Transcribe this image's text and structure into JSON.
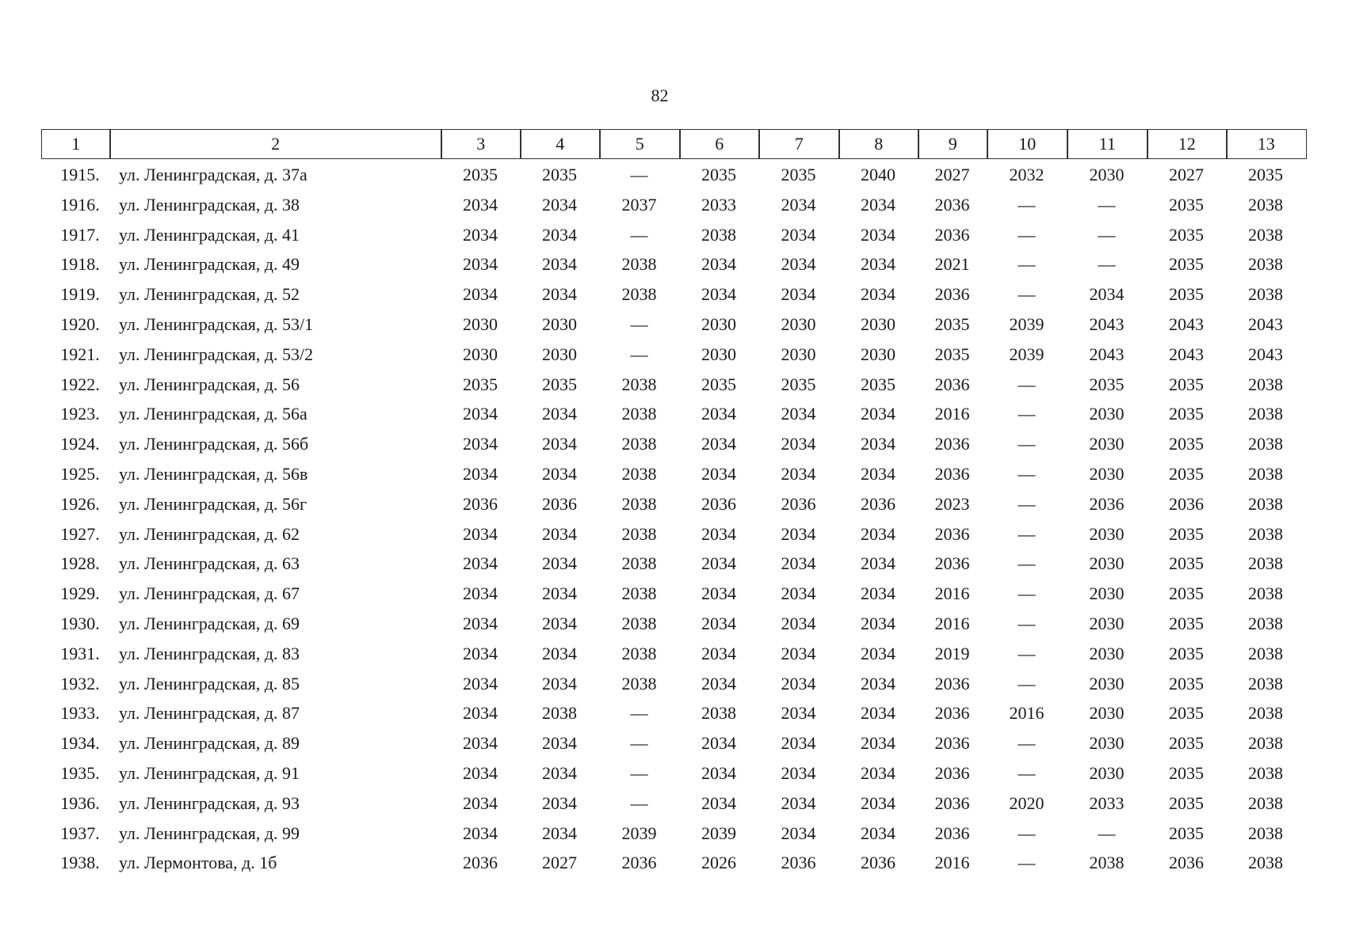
{
  "page_number": "82",
  "table": {
    "header": [
      "1",
      "2",
      "3",
      "4",
      "5",
      "6",
      "7",
      "8",
      "9",
      "10",
      "11",
      "12",
      "13"
    ],
    "rows": [
      [
        "1915.",
        "ул. Ленинградская, д. 37а",
        "2035",
        "2035",
        "—",
        "2035",
        "2035",
        "2040",
        "2027",
        "2032",
        "2030",
        "2027",
        "2035"
      ],
      [
        "1916.",
        "ул. Ленинградская, д. 38",
        "2034",
        "2034",
        "2037",
        "2033",
        "2034",
        "2034",
        "2036",
        "—",
        "—",
        "2035",
        "2038"
      ],
      [
        "1917.",
        "ул. Ленинградская, д. 41",
        "2034",
        "2034",
        "—",
        "2038",
        "2034",
        "2034",
        "2036",
        "—",
        "—",
        "2035",
        "2038"
      ],
      [
        "1918.",
        "ул. Ленинградская, д. 49",
        "2034",
        "2034",
        "2038",
        "2034",
        "2034",
        "2034",
        "2021",
        "—",
        "—",
        "2035",
        "2038"
      ],
      [
        "1919.",
        "ул. Ленинградская, д. 52",
        "2034",
        "2034",
        "2038",
        "2034",
        "2034",
        "2034",
        "2036",
        "—",
        "2034",
        "2035",
        "2038"
      ],
      [
        "1920.",
        "ул. Ленинградская, д. 53/1",
        "2030",
        "2030",
        "—",
        "2030",
        "2030",
        "2030",
        "2035",
        "2039",
        "2043",
        "2043",
        "2043"
      ],
      [
        "1921.",
        "ул. Ленинградская, д. 53/2",
        "2030",
        "2030",
        "—",
        "2030",
        "2030",
        "2030",
        "2035",
        "2039",
        "2043",
        "2043",
        "2043"
      ],
      [
        "1922.",
        "ул. Ленинградская, д. 56",
        "2035",
        "2035",
        "2038",
        "2035",
        "2035",
        "2035",
        "2036",
        "—",
        "2035",
        "2035",
        "2038"
      ],
      [
        "1923.",
        "ул. Ленинградская, д. 56а",
        "2034",
        "2034",
        "2038",
        "2034",
        "2034",
        "2034",
        "2016",
        "—",
        "2030",
        "2035",
        "2038"
      ],
      [
        "1924.",
        "ул. Ленинградская, д. 56б",
        "2034",
        "2034",
        "2038",
        "2034",
        "2034",
        "2034",
        "2036",
        "—",
        "2030",
        "2035",
        "2038"
      ],
      [
        "1925.",
        "ул. Ленинградская, д. 56в",
        "2034",
        "2034",
        "2038",
        "2034",
        "2034",
        "2034",
        "2036",
        "—",
        "2030",
        "2035",
        "2038"
      ],
      [
        "1926.",
        "ул. Ленинградская, д. 56г",
        "2036",
        "2036",
        "2038",
        "2036",
        "2036",
        "2036",
        "2023",
        "—",
        "2036",
        "2036",
        "2038"
      ],
      [
        "1927.",
        "ул. Ленинградская, д. 62",
        "2034",
        "2034",
        "2038",
        "2034",
        "2034",
        "2034",
        "2036",
        "—",
        "2030",
        "2035",
        "2038"
      ],
      [
        "1928.",
        "ул. Ленинградская, д. 63",
        "2034",
        "2034",
        "2038",
        "2034",
        "2034",
        "2034",
        "2036",
        "—",
        "2030",
        "2035",
        "2038"
      ],
      [
        "1929.",
        "ул. Ленинградская, д. 67",
        "2034",
        "2034",
        "2038",
        "2034",
        "2034",
        "2034",
        "2016",
        "—",
        "2030",
        "2035",
        "2038"
      ],
      [
        "1930.",
        "ул. Ленинградская, д. 69",
        "2034",
        "2034",
        "2038",
        "2034",
        "2034",
        "2034",
        "2016",
        "—",
        "2030",
        "2035",
        "2038"
      ],
      [
        "1931.",
        "ул. Ленинградская, д. 83",
        "2034",
        "2034",
        "2038",
        "2034",
        "2034",
        "2034",
        "2019",
        "—",
        "2030",
        "2035",
        "2038"
      ],
      [
        "1932.",
        "ул. Ленинградская, д. 85",
        "2034",
        "2034",
        "2038",
        "2034",
        "2034",
        "2034",
        "2036",
        "—",
        "2030",
        "2035",
        "2038"
      ],
      [
        "1933.",
        "ул. Ленинградская, д. 87",
        "2034",
        "2038",
        "—",
        "2038",
        "2034",
        "2034",
        "2036",
        "2016",
        "2030",
        "2035",
        "2038"
      ],
      [
        "1934.",
        "ул. Ленинградская, д. 89",
        "2034",
        "2034",
        "—",
        "2034",
        "2034",
        "2034",
        "2036",
        "—",
        "2030",
        "2035",
        "2038"
      ],
      [
        "1935.",
        "ул. Ленинградская, д. 91",
        "2034",
        "2034",
        "—",
        "2034",
        "2034",
        "2034",
        "2036",
        "—",
        "2030",
        "2035",
        "2038"
      ],
      [
        "1936.",
        "ул. Ленинградская, д. 93",
        "2034",
        "2034",
        "—",
        "2034",
        "2034",
        "2034",
        "2036",
        "2020",
        "2033",
        "2035",
        "2038"
      ],
      [
        "1937.",
        "ул. Ленинградская, д. 99",
        "2034",
        "2034",
        "2039",
        "2039",
        "2034",
        "2034",
        "2036",
        "—",
        "—",
        "2035",
        "2038"
      ],
      [
        "1938.",
        "ул. Лермонтова, д. 1б",
        "2036",
        "2027",
        "2036",
        "2026",
        "2036",
        "2036",
        "2016",
        "—",
        "2038",
        "2036",
        "2038"
      ]
    ]
  }
}
